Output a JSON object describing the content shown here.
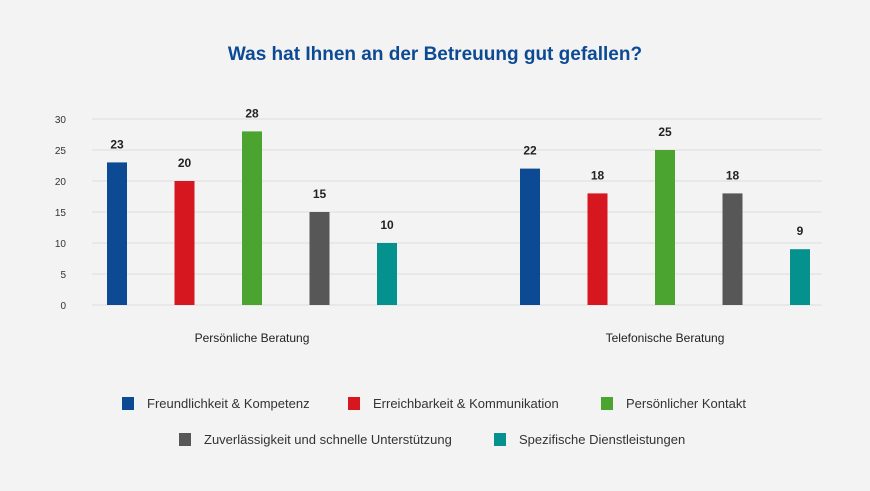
{
  "chart_data": {
    "type": "bar",
    "title": "Was hat Ihnen an der Betreuung gut gefallen?",
    "categories": [
      "Persönliche Beratung",
      "Telefonische Beratung"
    ],
    "series": [
      {
        "name": "Freundlichkeit & Kompetenz",
        "color": "#0d4a94",
        "values": [
          23,
          22
        ]
      },
      {
        "name": "Erreichbarkeit & Kommunikation",
        "color": "#d7171f",
        "values": [
          20,
          18
        ]
      },
      {
        "name": "Persönlicher Kontakt",
        "color": "#4ba42f",
        "values": [
          28,
          25
        ]
      },
      {
        "name": "Zuverlässigkeit und schnelle Unterstützung",
        "color": "#575757",
        "values": [
          15,
          18
        ]
      },
      {
        "name": "Spezifische Dienstleistungen",
        "color": "#05918e",
        "values": [
          10,
          9
        ]
      }
    ],
    "yticks": [
      0,
      5,
      10,
      15,
      20,
      25,
      30
    ],
    "ylim": [
      0,
      30
    ],
    "xlabel": "",
    "ylabel": "",
    "grid": true,
    "legend_position": "bottom"
  }
}
